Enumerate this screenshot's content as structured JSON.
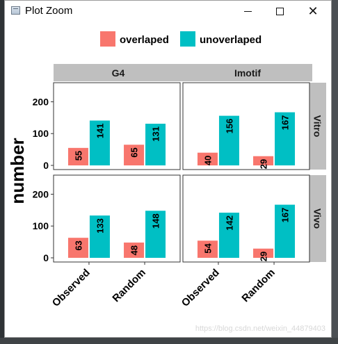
{
  "window": {
    "title": "Plot Zoom",
    "controls": {
      "minimize": "—",
      "maximize": "□",
      "close": "✕"
    }
  },
  "watermark": "https://blog.csdn.net/weixin_44879403",
  "colors": {
    "overlaped": "#f8766d",
    "unoverlaped": "#00bfc4",
    "strip": "#bfbfbf"
  },
  "chart_data": {
    "type": "bar",
    "ylabel": "number",
    "xlabel": "",
    "ylim": [
      0,
      260
    ],
    "yticks": [
      0,
      100,
      200
    ],
    "categories": [
      "Observed",
      "Random"
    ],
    "legend": {
      "position": "top",
      "entries": [
        {
          "label": "overlaped",
          "color": "#f8766d"
        },
        {
          "label": "unoverlaped",
          "color": "#00bfc4"
        }
      ]
    },
    "column_facets": [
      "G4",
      "Imotif"
    ],
    "row_facets": [
      "Vitro",
      "Vivo"
    ],
    "panels": [
      {
        "col": "G4",
        "row": "Vitro",
        "series": [
          {
            "name": "overlaped",
            "values": [
              55,
              65
            ]
          },
          {
            "name": "unoverlaped",
            "values": [
              141,
              131
            ]
          }
        ]
      },
      {
        "col": "Imotif",
        "row": "Vitro",
        "series": [
          {
            "name": "overlaped",
            "values": [
              40,
              29
            ]
          },
          {
            "name": "unoverlaped",
            "values": [
              156,
              167
            ]
          }
        ]
      },
      {
        "col": "G4",
        "row": "Vivo",
        "series": [
          {
            "name": "overlaped",
            "values": [
              63,
              48
            ]
          },
          {
            "name": "unoverlaped",
            "values": [
              133,
              148
            ]
          }
        ]
      },
      {
        "col": "Imotif",
        "row": "Vivo",
        "series": [
          {
            "name": "overlaped",
            "values": [
              54,
              29
            ]
          },
          {
            "name": "unoverlaped",
            "values": [
              142,
              167
            ]
          }
        ]
      }
    ]
  }
}
